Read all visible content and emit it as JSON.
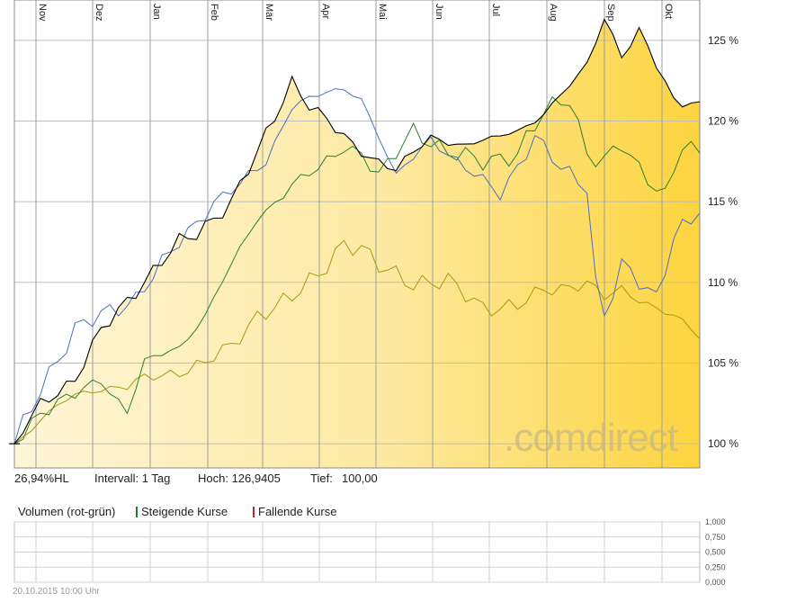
{
  "chart_data": {
    "type": "line",
    "months": [
      "Nov",
      "Dez",
      "Jan",
      "Feb",
      "Mär",
      "Apr",
      "Mai",
      "Jun",
      "Jul",
      "Aug",
      "Sep",
      "Okt"
    ],
    "y_ticks": [
      "100 %",
      "105 %",
      "110 %",
      "115 %",
      "120 %",
      "125 %"
    ],
    "volume_ticks": [
      "1,000",
      "0,750",
      "0,500",
      "0,250",
      "0,000"
    ],
    "ylim": [
      98.5,
      127.5
    ],
    "grid": true,
    "series": [
      {
        "color": "#000000",
        "fill": true,
        "keypoints": [
          [
            0,
            100
          ],
          [
            3,
            102.5
          ],
          [
            7,
            104
          ],
          [
            10,
            107
          ],
          [
            14,
            109.5
          ],
          [
            19,
            112.5
          ],
          [
            21,
            113
          ],
          [
            25,
            115
          ],
          [
            28,
            118
          ],
          [
            32,
            122.5
          ],
          [
            34,
            121
          ],
          [
            37,
            119.5
          ],
          [
            39,
            118.5
          ],
          [
            42,
            117.5
          ],
          [
            44,
            117
          ],
          [
            48,
            119
          ],
          [
            52,
            118.5
          ],
          [
            56,
            119
          ],
          [
            60,
            120
          ],
          [
            63,
            121.5
          ],
          [
            66,
            123.5
          ],
          [
            68,
            126.5
          ],
          [
            70,
            124
          ],
          [
            72,
            125.5
          ],
          [
            74,
            123.5
          ],
          [
            76,
            121.3
          ],
          [
            79,
            121.2
          ]
        ]
      },
      {
        "color": "#4a6fc4",
        "fill": false,
        "keypoints": [
          [
            0,
            100
          ],
          [
            3,
            103.5
          ],
          [
            7,
            107
          ],
          [
            10,
            108
          ],
          [
            14,
            109
          ],
          [
            19,
            112.5
          ],
          [
            23,
            115
          ],
          [
            26,
            116
          ],
          [
            29,
            117.5
          ],
          [
            32,
            121
          ],
          [
            35,
            121.5
          ],
          [
            38,
            122
          ],
          [
            40,
            121.5
          ],
          [
            42,
            119
          ],
          [
            44,
            116.5
          ],
          [
            48,
            119
          ],
          [
            52,
            117
          ],
          [
            56,
            115.5
          ],
          [
            60,
            119
          ],
          [
            63,
            117
          ],
          [
            66,
            116
          ],
          [
            67,
            110
          ],
          [
            68,
            108
          ],
          [
            70,
            111
          ],
          [
            72,
            110
          ],
          [
            74,
            109
          ],
          [
            76,
            113
          ],
          [
            79,
            114.3
          ]
        ]
      },
      {
        "color": "#2e7d32",
        "fill": false,
        "keypoints": [
          [
            0,
            100
          ],
          [
            3,
            102
          ],
          [
            7,
            103
          ],
          [
            10,
            104
          ],
          [
            13,
            102
          ],
          [
            15,
            105
          ],
          [
            19,
            106
          ],
          [
            22,
            108
          ],
          [
            25,
            111
          ],
          [
            28,
            114
          ],
          [
            32,
            116
          ],
          [
            35,
            117
          ],
          [
            38,
            118.5
          ],
          [
            40,
            118
          ],
          [
            42,
            116.5
          ],
          [
            46,
            119.5
          ],
          [
            50,
            118
          ],
          [
            54,
            117.5
          ],
          [
            58,
            118
          ],
          [
            61,
            120.5
          ],
          [
            64,
            121.5
          ],
          [
            66,
            118
          ],
          [
            68,
            117.5
          ],
          [
            70,
            118.5
          ],
          [
            72,
            117
          ],
          [
            75,
            115.5
          ],
          [
            77,
            118.5
          ],
          [
            79,
            118
          ]
        ]
      },
      {
        "color": "#a69a12",
        "fill": false,
        "keypoints": [
          [
            0,
            100
          ],
          [
            3,
            101.5
          ],
          [
            7,
            103
          ],
          [
            10,
            103.5
          ],
          [
            13,
            103.5
          ],
          [
            15,
            104
          ],
          [
            19,
            104.5
          ],
          [
            22,
            105
          ],
          [
            25,
            106
          ],
          [
            28,
            108
          ],
          [
            32,
            109
          ],
          [
            35,
            110.5
          ],
          [
            38,
            112.5
          ],
          [
            40,
            112
          ],
          [
            42,
            111
          ],
          [
            46,
            110
          ],
          [
            50,
            110
          ],
          [
            54,
            108.5
          ],
          [
            58,
            108.5
          ],
          [
            61,
            109.5
          ],
          [
            64,
            109.8
          ],
          [
            66,
            110
          ],
          [
            68,
            109
          ],
          [
            70,
            109.5
          ],
          [
            72,
            109
          ],
          [
            74,
            108.5
          ],
          [
            77,
            107.5
          ],
          [
            79,
            106.5
          ]
        ]
      }
    ],
    "n_points": 80
  },
  "stats": {
    "range": "26,94%HL",
    "interval": "Intervall: 1 Tag",
    "high": "Hoch: 126,9405",
    "low": "Tief:",
    "low_value": "100,00"
  },
  "volume": {
    "title": "Volumen (rot-grün)",
    "rising": "Steigende Kurse",
    "falling": "Fallende Kurse",
    "rising_color": "#1e7a2e",
    "falling_color": "#c62828"
  },
  "footer": "20.10.2015 10:00 Uhr",
  "watermark": ".comdirect"
}
